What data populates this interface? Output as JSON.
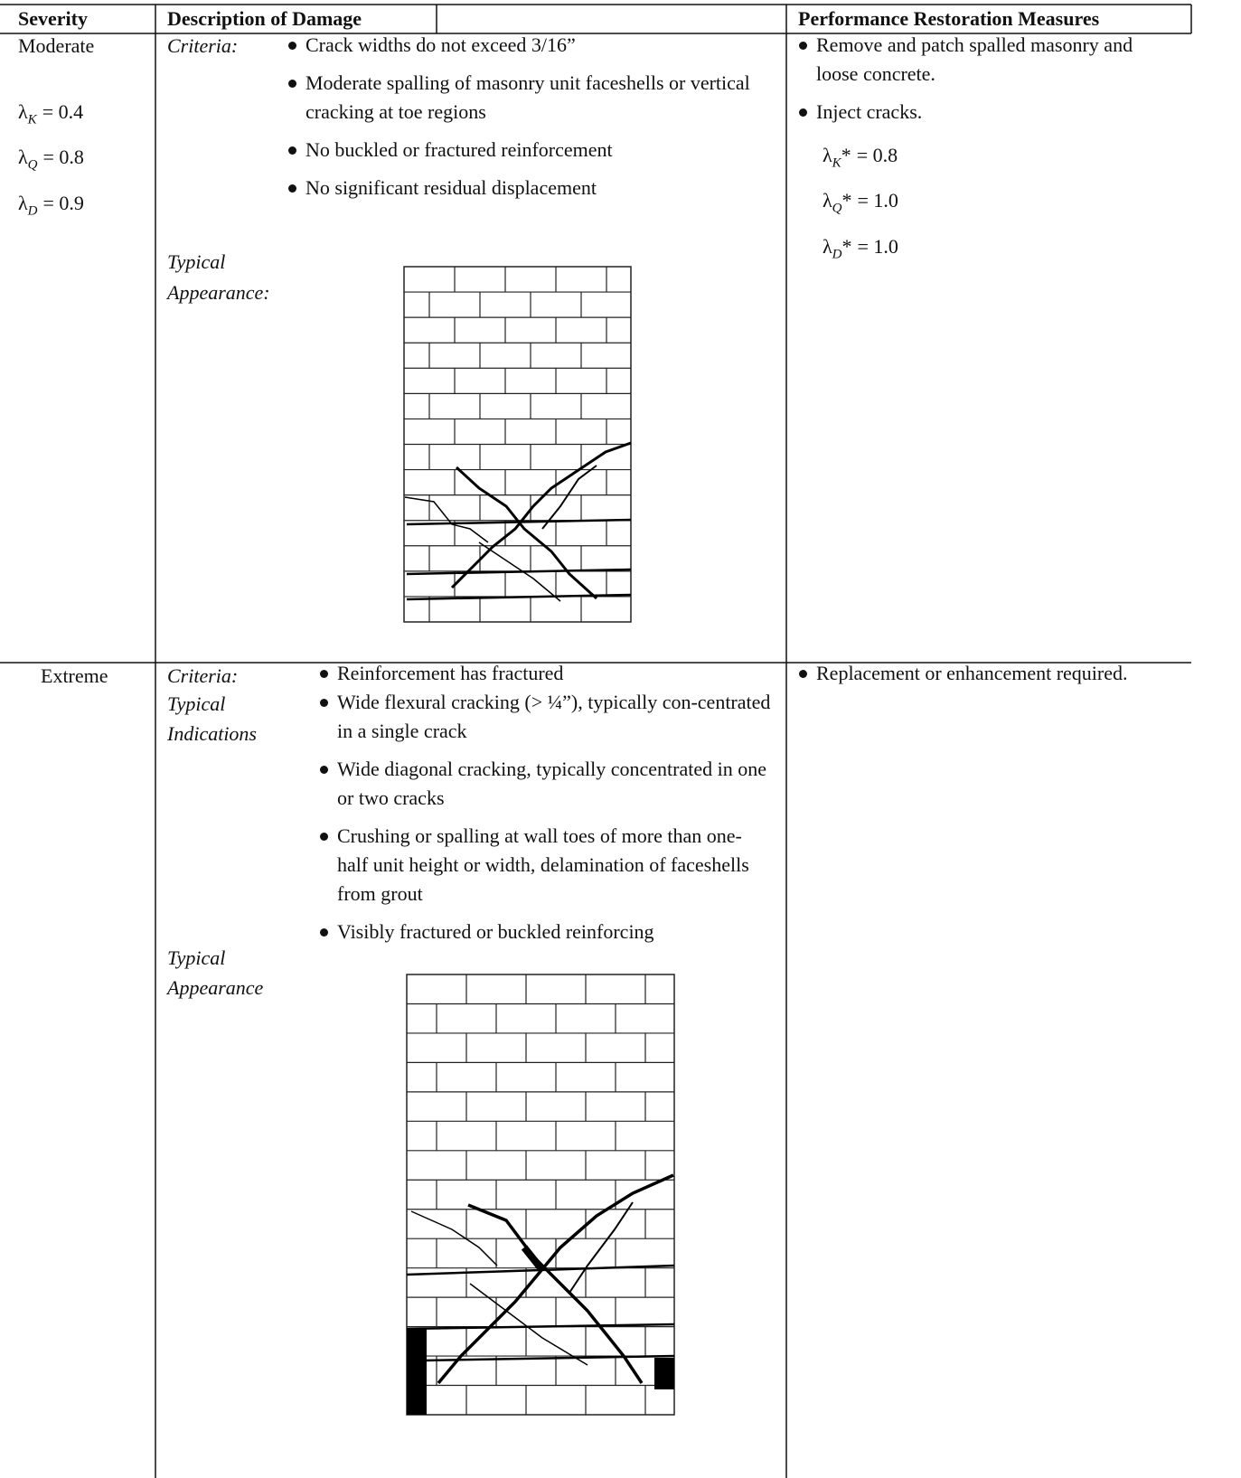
{
  "header": {
    "severity": "Severity",
    "description": "Description of Damage",
    "measures": "Performance Restoration Measures"
  },
  "rows": [
    {
      "severity": "Moderate",
      "factors": [
        {
          "base": "λ",
          "sub": "K",
          "rest": "= 0.4"
        },
        {
          "base": "λ",
          "sub": "Q",
          "rest": "= 0.8"
        },
        {
          "base": "λ",
          "sub": "D",
          "rest": "= 0.9"
        }
      ],
      "criteria_label": "Criteria:",
      "criteria": [
        "Crack widths do not exceed 3/16”",
        "Moderate spalling of masonry unit faceshells or vertical cracking at toe regions",
        "No buckled or fractured reinforcement",
        "No significant residual displacement"
      ],
      "appearance_label": "Typical Appearance:",
      "measures": [
        "Remove and patch spalled masonry and loose concrete.",
        "Inject cracks."
      ],
      "restored_factors": [
        {
          "base": "λ",
          "sub": "K",
          "star": "*",
          "rest": "= 0.8"
        },
        {
          "base": "λ",
          "sub": "Q",
          "star": "*",
          "rest": "= 1.0"
        },
        {
          "base": "λ",
          "sub": "D",
          "star": "*",
          "rest": "= 1.0"
        }
      ]
    },
    {
      "severity": "Extreme",
      "criteria_label": "Criteria:",
      "indications_label": "Typical Indications",
      "criteria": [
        "Reinforcement has fractured",
        "Wide flexural cracking (> ¼”), typically con-centrated in a single crack",
        "Wide diagonal cracking, typically concentrated in one or two cracks",
        "Crushing or spalling at wall toes of more than one-half unit height or width, delamination of faceshells from grout",
        "Visibly fractured or buckled reinforcing"
      ],
      "appearance_label": "Typical Appearance",
      "measures": [
        "Replacement or enhancement required."
      ]
    }
  ]
}
